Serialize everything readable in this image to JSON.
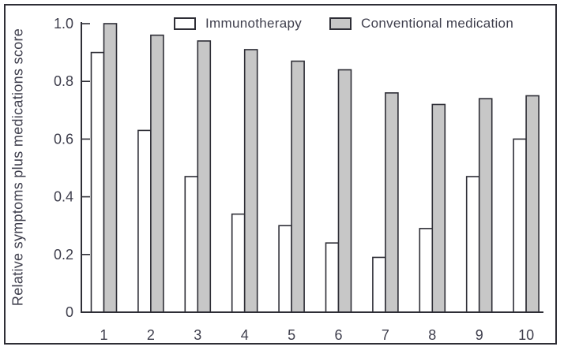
{
  "figure": {
    "background": "#ffffff",
    "frame_color": "#2e2e36"
  },
  "legend": {
    "items": [
      {
        "label": "Immunotherapy",
        "swatch_color": "#ffffff"
      },
      {
        "label": "Conventional medication",
        "swatch_color": "#c7c7c7"
      }
    ]
  },
  "axes": {
    "ylabel": "Relative symptoms plus medications score",
    "y_ticks": [
      "1.0",
      "0.8",
      "0.6",
      "0.4",
      "0.2",
      "0"
    ],
    "y_tick_values": [
      1.0,
      0.8,
      0.6,
      0.4,
      0.2,
      0
    ],
    "x_ticks": [
      "1",
      "2",
      "3",
      "4",
      "5",
      "6",
      "7",
      "8",
      "9",
      "10"
    ]
  },
  "chart_data": {
    "type": "bar",
    "title": "",
    "xlabel": "",
    "ylabel": "Relative symptoms plus medications score",
    "categories": [
      "1",
      "2",
      "3",
      "4",
      "5",
      "6",
      "7",
      "8",
      "9",
      "10"
    ],
    "series": [
      {
        "name": "Immunotherapy",
        "color": "#ffffff",
        "values": [
          0.9,
          0.63,
          0.47,
          0.34,
          0.3,
          0.24,
          0.19,
          0.29,
          0.47,
          0.6
        ]
      },
      {
        "name": "Conventional medication",
        "color": "#c7c7c7",
        "values": [
          1.0,
          0.96,
          0.94,
          0.91,
          0.87,
          0.84,
          0.76,
          0.72,
          0.74,
          0.75
        ]
      }
    ],
    "ylim": [
      0,
      1.0
    ],
    "grid": false,
    "legend_position": "top"
  },
  "colors": {
    "bar_border": "#2e2e36",
    "axis": "#2e2e36",
    "text": "#3e3e4c",
    "gray_fill": "#c7c7c7"
  }
}
